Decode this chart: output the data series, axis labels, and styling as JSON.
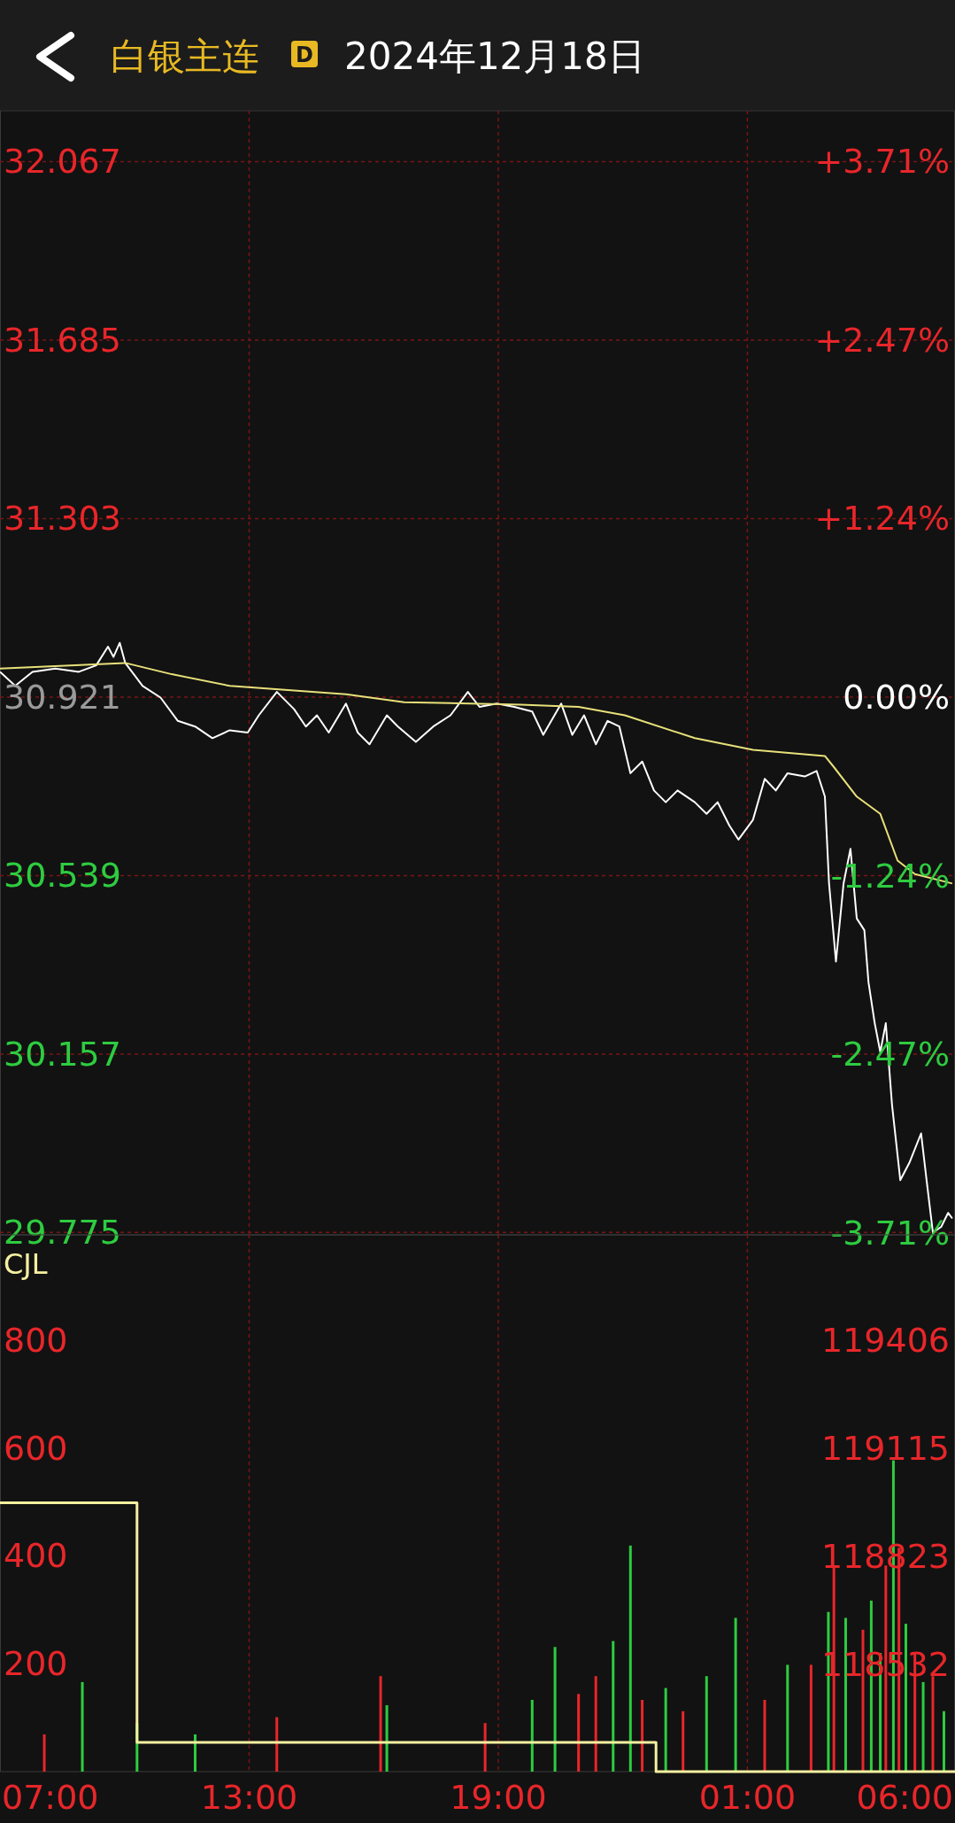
{
  "chart_data": [
    {
      "type": "line",
      "title": "白银主连",
      "subtitle": "2024年12月18日",
      "annotations": [
        "D"
      ],
      "xlim": [
        "2024-12-17T07:00",
        "2024-12-18T06:00"
      ],
      "xticks": [
        {
          "value": "2024-12-17T13:00",
          "label": null
        },
        {
          "value": "2024-12-17T19:00",
          "label": null
        },
        {
          "value": "2024-12-18T01:00",
          "label": null
        }
      ],
      "tick_labels": "y",
      "ylim": [
        29.77,
        32.176
      ],
      "yticks": [
        32.067,
        31.685,
        31.303,
        30.921,
        30.539,
        30.157,
        29.775
      ],
      "y2lim": [
        -3.72,
        4.06
      ],
      "y2ticks": [
        {
          "value": 3.71,
          "label": "+3.71%"
        },
        {
          "value": 2.47,
          "label": "+2.47%"
        },
        {
          "value": 1.24,
          "label": "+1.24%"
        },
        {
          "value": 0,
          "label": "0.00%"
        },
        {
          "value": -1.24,
          "label": "-1.24%"
        },
        {
          "value": -2.47,
          "label": "-2.47%"
        },
        {
          "value": -3.71,
          "label": "-3.71%"
        }
      ],
      "grid": true,
      "series": [
        {
          "color": "#ffffff",
          "x": [
            "2024-12-17T07:00",
            "2024-12-17T07:22",
            "2024-12-17T07:47",
            "2024-12-17T08:20",
            "2024-12-17T08:54",
            "2024-12-17T09:19",
            "2024-12-17T09:36",
            "2024-12-17T09:44",
            "2024-12-17T09:53",
            "2024-12-17T10:01",
            "2024-12-17T10:26",
            "2024-12-17T10:52",
            "2024-12-17T11:17",
            "2024-12-17T11:42",
            "2024-12-17T12:07",
            "2024-12-17T12:32",
            "2024-12-17T12:58",
            "2024-12-17T13:14",
            "2024-12-17T13:40",
            "2024-12-17T14:05",
            "2024-12-17T14:22",
            "2024-12-17T14:38",
            "2024-12-17T14:55",
            "2024-12-17T15:20",
            "2024-12-17T15:37",
            "2024-12-17T15:54",
            "2024-12-17T16:19",
            "2024-12-17T16:35",
            "2024-12-17T17:01",
            "2024-12-17T17:26",
            "2024-12-17T17:51",
            "2024-12-17T18:16",
            "2024-12-17T18:33",
            "2024-12-17T18:58",
            "2024-12-17T19:23",
            "2024-12-17T19:49",
            "2024-12-17T20:05",
            "2024-12-17T20:31",
            "2024-12-17T20:47",
            "2024-12-17T21:04",
            "2024-12-17T21:21",
            "2024-12-17T21:38",
            "2024-12-17T21:55",
            "2024-12-17T22:11",
            "2024-12-17T22:28",
            "2024-12-17T22:45",
            "2024-12-17T23:02",
            "2024-12-17T23:19",
            "2024-12-17T23:44",
            "2024-12-18T00:01",
            "2024-12-18T00:17",
            "2024-12-18T00:34",
            "2024-12-18T00:47",
            "2024-12-18T01:08",
            "2024-12-18T01:25",
            "2024-12-18T01:41",
            "2024-12-18T01:58",
            "2024-12-18T02:23",
            "2024-12-18T02:40",
            "2024-12-18T02:52",
            "2024-12-18T02:58",
            "2024-12-18T03:08",
            "2024-12-18T03:19",
            "2024-12-18T03:29",
            "2024-12-18T03:38",
            "2024-12-18T03:49",
            "2024-12-18T03:55",
            "2024-12-18T04:04",
            "2024-12-18T04:12",
            "2024-12-18T04:20",
            "2024-12-18T04:29",
            "2024-12-18T04:41",
            "2024-12-18T04:54",
            "2024-12-18T05:11",
            "2024-12-18T05:19",
            "2024-12-18T05:28",
            "2024-12-18T05:40",
            "2024-12-18T05:50",
            "2024-12-18T05:56"
          ],
          "values": [
            30.975,
            30.945,
            30.975,
            30.982,
            30.975,
            30.989,
            31.029,
            31.007,
            31.037,
            30.994,
            30.945,
            30.92,
            30.87,
            30.858,
            30.833,
            30.85,
            30.845,
            30.882,
            30.932,
            30.895,
            30.858,
            30.882,
            30.845,
            30.907,
            30.845,
            30.82,
            30.882,
            30.858,
            30.825,
            30.858,
            30.882,
            30.932,
            30.9,
            30.907,
            30.9,
            30.89,
            30.84,
            30.907,
            30.84,
            30.882,
            30.82,
            30.87,
            30.858,
            30.758,
            30.783,
            30.721,
            30.696,
            30.721,
            30.696,
            30.671,
            30.696,
            30.646,
            30.616,
            30.658,
            30.746,
            30.721,
            30.758,
            30.751,
            30.763,
            30.708,
            30.522,
            30.355,
            30.522,
            30.596,
            30.447,
            30.422,
            30.31,
            30.223,
            30.161,
            30.223,
            30.049,
            29.887,
            29.924,
            29.987,
            29.887,
            29.775,
            29.787,
            29.817,
            29.805
          ]
        },
        {
          "color": "#e8e07a",
          "x": [
            "2024-12-17T07:00",
            "2024-12-17T10:01",
            "2024-12-17T11:08",
            "2024-12-17T12:32",
            "2024-12-17T15:20",
            "2024-12-17T16:44",
            "2024-12-17T19:32",
            "2024-12-17T20:56",
            "2024-12-17T22:03",
            "2024-12-17T23:44",
            "2024-12-18T01:08",
            "2024-12-18T02:52",
            "2024-12-18T03:05",
            "2024-12-18T03:38",
            "2024-12-18T04:12",
            "2024-12-18T04:37",
            "2024-12-18T05:02",
            "2024-12-18T05:56"
          ],
          "values": [
            30.982,
            30.994,
            30.97,
            30.945,
            30.927,
            30.91,
            30.905,
            30.9,
            30.882,
            30.833,
            30.808,
            30.795,
            30.771,
            30.708,
            30.671,
            30.571,
            30.542,
            30.522
          ]
        }
      ]
    },
    {
      "type": "bar",
      "title": "CJL",
      "xlim": [
        "2024-12-17T07:00",
        "2024-12-18T06:00"
      ],
      "xticks": [
        {
          "value": "2024-12-17T07:00",
          "label": "07:00"
        },
        {
          "value": "2024-12-17T13:00",
          "label": "13:00"
        },
        {
          "value": "2024-12-17T19:00",
          "label": "19:00"
        },
        {
          "value": "2024-12-18T01:00",
          "label": "01:00"
        },
        {
          "value": "2024-12-18T06:00",
          "label": "06:00"
        }
      ],
      "ylim": [
        0,
        995
      ],
      "yticks": [
        200,
        400,
        600,
        800
      ],
      "y2lim": [
        118242,
        119690
      ],
      "y2ticks": [
        118532,
        118823,
        119115,
        119406
      ],
      "grid": "x",
      "series": [
        {
          "x": [
            "2024-12-17T08:04",
            "2024-12-17T08:59",
            "2024-12-17T10:18",
            "2024-12-17T11:42",
            "2024-12-17T13:40",
            "2024-12-17T16:10",
            "2024-12-17T16:19",
            "2024-12-17T18:41",
            "2024-12-17T19:49",
            "2024-12-17T20:22",
            "2024-12-17T20:56",
            "2024-12-17T21:21",
            "2024-12-17T21:46",
            "2024-12-17T22:11",
            "2024-12-17T22:28",
            "2024-12-17T23:02",
            "2024-12-17T23:27",
            "2024-12-18T00:01",
            "2024-12-18T00:43",
            "2024-12-18T01:25",
            "2024-12-18T01:58",
            "2024-12-18T02:32",
            "2024-12-18T02:57",
            "2024-12-18T03:05",
            "2024-12-18T03:22",
            "2024-12-18T03:47",
            "2024-12-18T03:59",
            "2024-12-18T04:12",
            "2024-12-18T04:20",
            "2024-12-18T04:31",
            "2024-12-18T04:39",
            "2024-12-18T04:49",
            "2024-12-18T05:02",
            "2024-12-18T05:14",
            "2024-12-18T05:28",
            "2024-12-18T05:44"
          ],
          "values": [
            69,
            166,
            90,
            69,
            101,
            177,
            123,
            90,
            133,
            231,
            144,
            177,
            242,
            419,
            133,
            155,
            112,
            177,
            285,
            133,
            198,
            198,
            296,
            382,
            285,
            263,
            317,
            220,
            382,
            577,
            415,
            274,
            220,
            166,
            177,
            112
          ],
          "colors": [
            "#e8262a",
            "#2ecc40",
            "#2ecc40",
            "#2ecc40",
            "#e8262a",
            "#e8262a",
            "#2ecc40",
            "#e8262a",
            "#2ecc40",
            "#2ecc40",
            "#e8262a",
            "#e8262a",
            "#2ecc40",
            "#2ecc40",
            "#e8262a",
            "#2ecc40",
            "#e8262a",
            "#2ecc40",
            "#2ecc40",
            "#e8262a",
            "#2ecc40",
            "#e8262a",
            "#2ecc40",
            "#e8262a",
            "#2ecc40",
            "#e8262a",
            "#2ecc40",
            "#2ecc40",
            "#e8262a",
            "#2ecc40",
            "#e8262a",
            "#2ecc40",
            "#e8262a",
            "#2ecc40",
            "#e8262a",
            "#2ecc40"
          ]
        },
        {
          "type": "step",
          "axis": "y2",
          "color": "#f5f0a0",
          "x": [
            "2024-12-17T07:00",
            "2024-12-17T10:18",
            "2024-12-17T22:48",
            "2024-12-18T06:00"
          ],
          "values": [
            118967,
            118321,
            118242,
            118242
          ]
        }
      ]
    }
  ]
}
